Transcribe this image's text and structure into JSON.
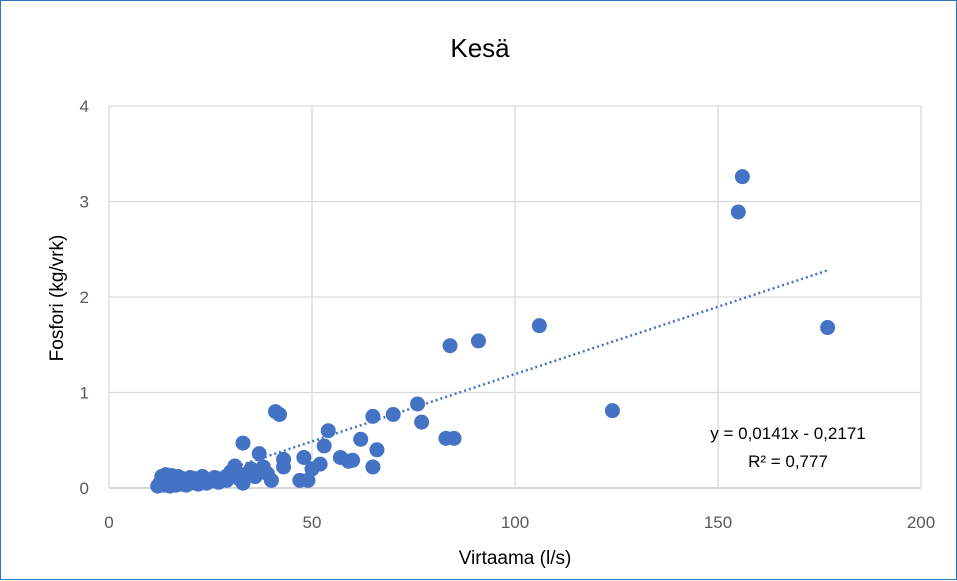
{
  "chart_data": {
    "type": "scatter",
    "title": "Kesä",
    "xlabel": "Virtaama (l/s)",
    "ylabel": "Fosfori (kg/vrk)",
    "xlim": [
      0,
      200
    ],
    "ylim": [
      0,
      4
    ],
    "x_ticks": [
      0,
      50,
      100,
      150,
      200
    ],
    "y_ticks": [
      0,
      1,
      2,
      3,
      4
    ],
    "grid": true,
    "marker_color": "#4472c4",
    "trendline": {
      "type": "linear",
      "slope": 0.0141,
      "intercept": -0.2171,
      "x_range": [
        15,
        177
      ],
      "style": "dotted",
      "color": "#4472c4",
      "equation_label": "y = 0,0141x - 0,2171",
      "r2_label": "R² = 0,777"
    },
    "points": [
      [
        12,
        0.02
      ],
      [
        12.5,
        0.05
      ],
      [
        13,
        0.08
      ],
      [
        13,
        0.12
      ],
      [
        13.5,
        0.03
      ],
      [
        14,
        0.1
      ],
      [
        14,
        0.14
      ],
      [
        14.5,
        0.06
      ],
      [
        15,
        0.02
      ],
      [
        15,
        0.09
      ],
      [
        15.5,
        0.13
      ],
      [
        16,
        0.05
      ],
      [
        16,
        0.11
      ],
      [
        16.5,
        0.03
      ],
      [
        17,
        0.08
      ],
      [
        17,
        0.12
      ],
      [
        17.5,
        0.06
      ],
      [
        18,
        0.04
      ],
      [
        18,
        0.1
      ],
      [
        18.5,
        0.07
      ],
      [
        19,
        0.03
      ],
      [
        19,
        0.09
      ],
      [
        20,
        0.05
      ],
      [
        20,
        0.11
      ],
      [
        21,
        0.06
      ],
      [
        21,
        0.1
      ],
      [
        22,
        0.04
      ],
      [
        22,
        0.08
      ],
      [
        23,
        0.12
      ],
      [
        24,
        0.05
      ],
      [
        24,
        0.09
      ],
      [
        25,
        0.07
      ],
      [
        26,
        0.11
      ],
      [
        27,
        0.06
      ],
      [
        28,
        0.1
      ],
      [
        29,
        0.08
      ],
      [
        30,
        0.13
      ],
      [
        30,
        0.17
      ],
      [
        31,
        0.23
      ],
      [
        32,
        0.1
      ],
      [
        33,
        0.05
      ],
      [
        33,
        0.47
      ],
      [
        34,
        0.15
      ],
      [
        35,
        0.2
      ],
      [
        36,
        0.12
      ],
      [
        37,
        0.36
      ],
      [
        38,
        0.22
      ],
      [
        39,
        0.15
      ],
      [
        40,
        0.08
      ],
      [
        41,
        0.8
      ],
      [
        42,
        0.77
      ],
      [
        43,
        0.22
      ],
      [
        43,
        0.3
      ],
      [
        47,
        0.08
      ],
      [
        48,
        0.32
      ],
      [
        49,
        0.08
      ],
      [
        50,
        0.2
      ],
      [
        52,
        0.25
      ],
      [
        53,
        0.44
      ],
      [
        54,
        0.6
      ],
      [
        57,
        0.32
      ],
      [
        59,
        0.28
      ],
      [
        60,
        0.29
      ],
      [
        62,
        0.51
      ],
      [
        65,
        0.22
      ],
      [
        65,
        0.75
      ],
      [
        66,
        0.4
      ],
      [
        70,
        0.77
      ],
      [
        76,
        0.88
      ],
      [
        77,
        0.69
      ],
      [
        83,
        0.52
      ],
      [
        84,
        1.49
      ],
      [
        85,
        0.52
      ],
      [
        91,
        1.54
      ],
      [
        106,
        1.7
      ],
      [
        124,
        0.81
      ],
      [
        155,
        2.89
      ],
      [
        156,
        3.26
      ],
      [
        177,
        1.68
      ]
    ]
  }
}
